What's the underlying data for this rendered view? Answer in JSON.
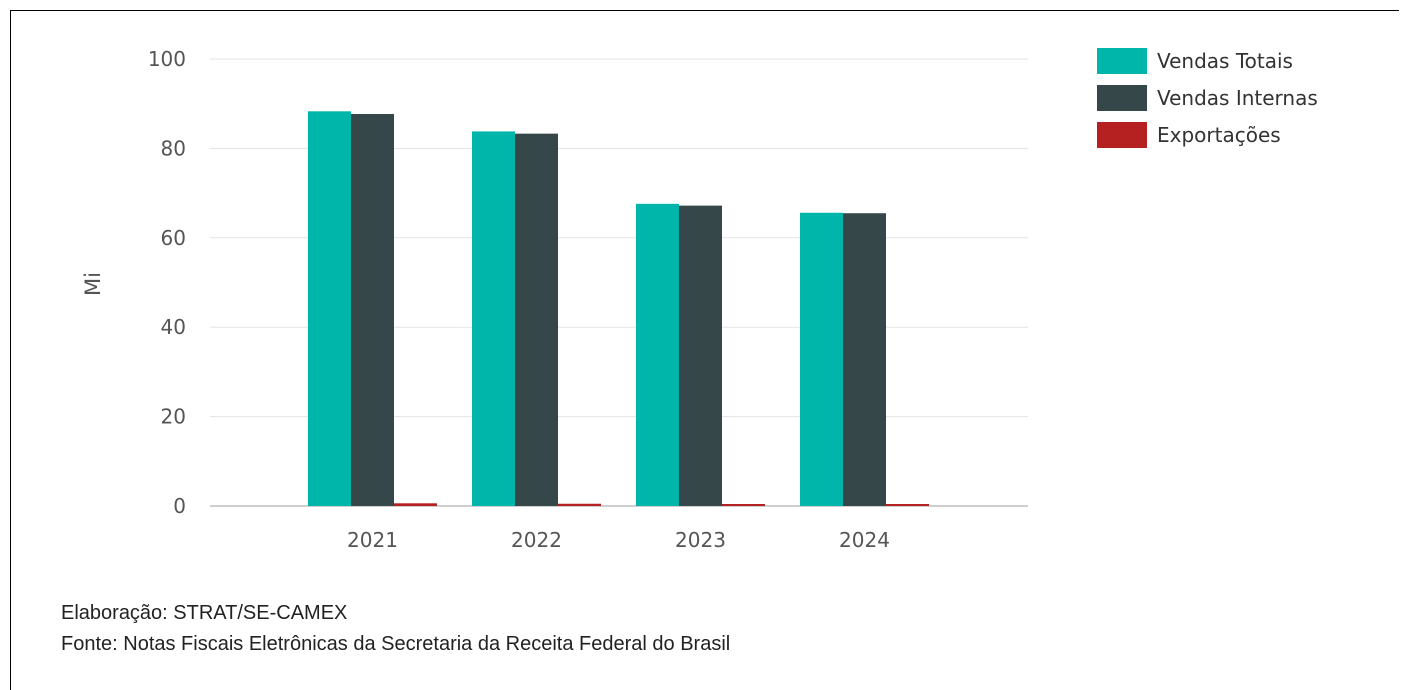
{
  "chart_data": {
    "type": "bar",
    "categories": [
      "2021",
      "2022",
      "2023",
      "2024"
    ],
    "series": [
      {
        "name": "Vendas Totais",
        "values": [
          88.3,
          83.8,
          67.6,
          65.6
        ],
        "color": "#00B5A9"
      },
      {
        "name": "Vendas Internas",
        "values": [
          87.7,
          83.3,
          67.2,
          65.5
        ],
        "color": "#36474A"
      },
      {
        "name": "Exportações",
        "values": [
          0.6,
          0.5,
          0.4,
          0.3
        ],
        "color": "#B52020"
      }
    ],
    "ylabel": "Mi",
    "ylim": [
      0,
      100
    ],
    "yticks": [
      "0",
      "20",
      "40",
      "60",
      "80",
      "100"
    ],
    "grid": true,
    "legend_position": "top-right"
  },
  "footer": {
    "line1": "Elaboração: STRAT/SE-CAMEX",
    "line2": "Fonte: Notas Fiscais Eletrônicas da Secretaria da Receita Federal do Brasil"
  }
}
